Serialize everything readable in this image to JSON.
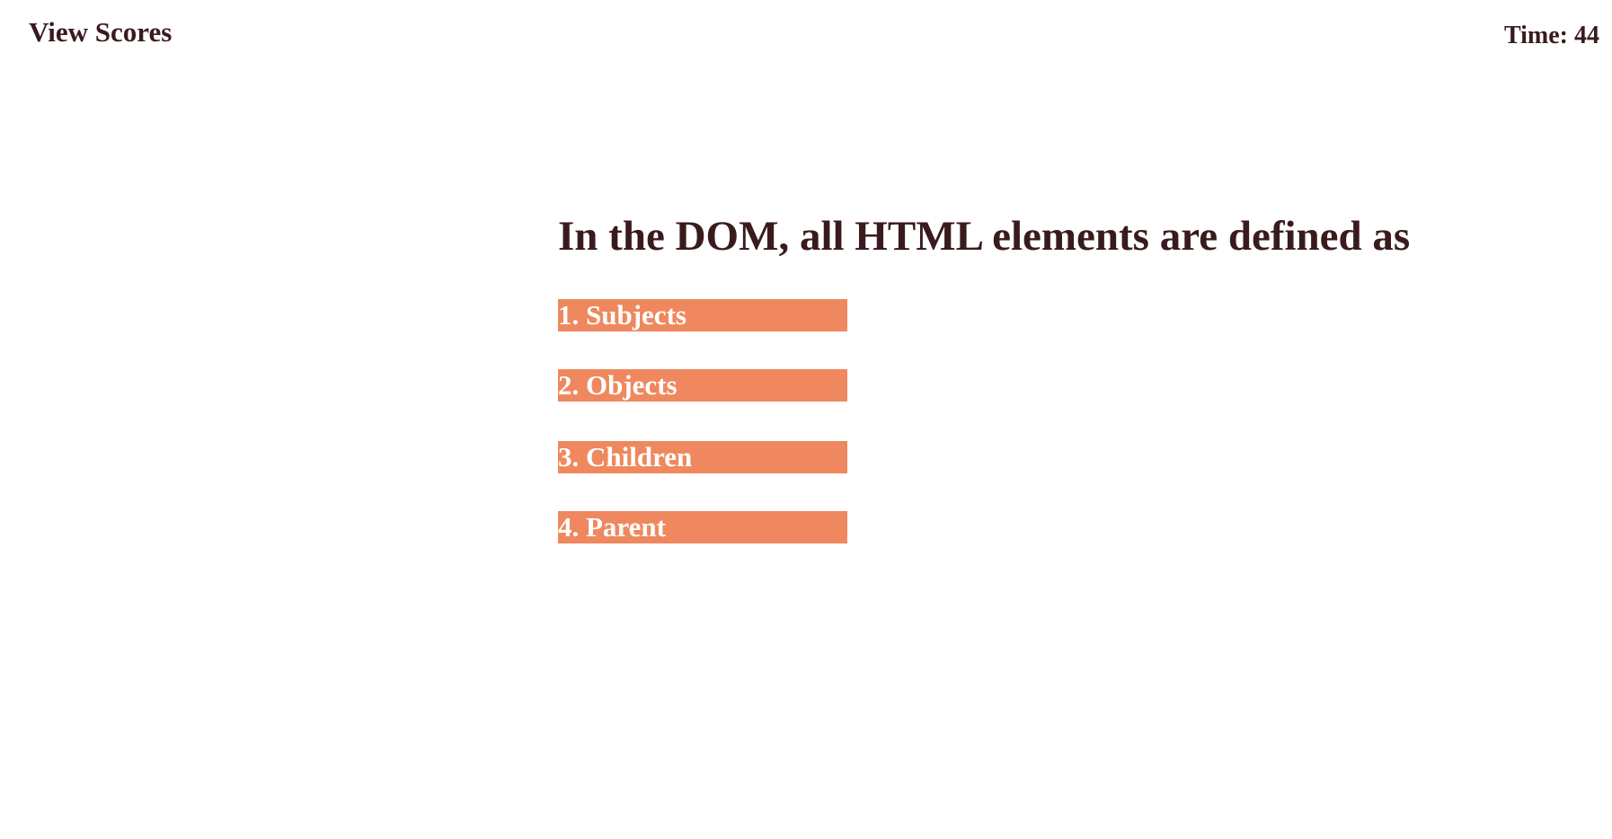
{
  "header": {
    "view_scores_label": "View Scores",
    "timer_label": "Time:",
    "timer_value": "44"
  },
  "quiz": {
    "question": "In the DOM, all HTML elements are defined as",
    "answers": [
      {
        "number": "1.",
        "text": "Subjects"
      },
      {
        "number": "2.",
        "text": "Objects"
      },
      {
        "number": "3.",
        "text": "Children"
      },
      {
        "number": "4.",
        "text": "Parent"
      }
    ]
  },
  "colors": {
    "text": "#3a1b1d",
    "answer_background": "#ef885e",
    "answer_text": "#ffffff",
    "page_background": "#ffffff"
  }
}
